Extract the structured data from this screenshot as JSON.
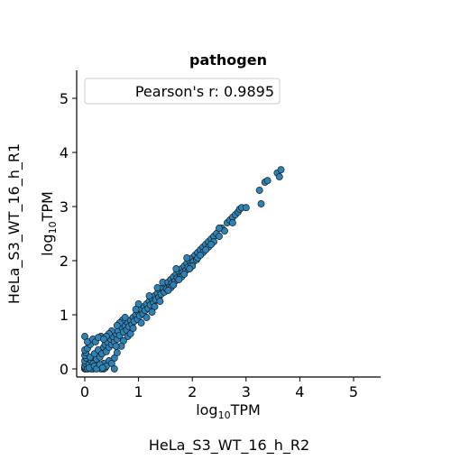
{
  "chart_data": {
    "type": "scatter",
    "title": "pathogen",
    "xlabel": {
      "base": "log",
      "sub": "10",
      "rest": "TPM"
    },
    "ylabel": {
      "base": "log",
      "sub": "10",
      "rest": "TPM"
    },
    "figure_xlabel": "HeLa_S3_WT_16_h_R2",
    "figure_ylabel": "HeLa_S3_WT_16_h_R1",
    "xlim": [
      -0.15,
      5.5
    ],
    "ylim": [
      -0.15,
      5.5
    ],
    "xticks": [
      0,
      1,
      2,
      3,
      4,
      5
    ],
    "yticks": [
      0,
      1,
      2,
      3,
      4,
      5
    ],
    "grid": false,
    "legend": {
      "text": "Pearson's r: 0.9895",
      "placement": "top-left"
    },
    "marker_color": "#2b83ba",
    "marker_edge_color": "#1a1a1a",
    "points": [
      [
        0.0,
        0.0
      ],
      [
        0.0,
        0.02
      ],
      [
        0.02,
        0.0
      ],
      [
        0.0,
        0.05
      ],
      [
        0.05,
        0.0
      ],
      [
        0.01,
        0.1
      ],
      [
        0.1,
        0.01
      ],
      [
        0.0,
        0.15
      ],
      [
        0.15,
        0.0
      ],
      [
        0.03,
        0.2
      ],
      [
        0.2,
        0.03
      ],
      [
        0.0,
        0.25
      ],
      [
        0.25,
        0.02
      ],
      [
        0.02,
        0.3
      ],
      [
        0.3,
        0.05
      ],
      [
        0.0,
        0.35
      ],
      [
        0.35,
        0.0
      ],
      [
        0.05,
        0.38
      ],
      [
        0.38,
        0.02
      ],
      [
        0.0,
        0.6
      ],
      [
        0.08,
        0.08
      ],
      [
        0.12,
        0.15
      ],
      [
        0.16,
        0.1
      ],
      [
        0.1,
        0.22
      ],
      [
        0.22,
        0.18
      ],
      [
        0.18,
        0.28
      ],
      [
        0.28,
        0.22
      ],
      [
        0.25,
        0.35
      ],
      [
        0.32,
        0.28
      ],
      [
        0.35,
        0.4
      ],
      [
        0.4,
        0.32
      ],
      [
        0.38,
        0.45
      ],
      [
        0.45,
        0.4
      ],
      [
        0.42,
        0.5
      ],
      [
        0.5,
        0.45
      ],
      [
        0.48,
        0.55
      ],
      [
        0.55,
        0.5
      ],
      [
        0.52,
        0.6
      ],
      [
        0.6,
        0.55
      ],
      [
        0.58,
        0.65
      ],
      [
        0.1,
        0.45
      ],
      [
        0.05,
        0.5
      ],
      [
        0.15,
        0.55
      ],
      [
        0.2,
        0.5
      ],
      [
        0.3,
        0.6
      ],
      [
        0.25,
        0.58
      ],
      [
        0.55,
        0.2
      ],
      [
        0.6,
        0.3
      ],
      [
        0.45,
        0.15
      ],
      [
        0.35,
        0.1
      ],
      [
        0.3,
        0.0
      ],
      [
        0.4,
        0.05
      ],
      [
        0.5,
        0.1
      ],
      [
        0.55,
        0.0
      ],
      [
        0.12,
        0.0
      ],
      [
        0.08,
        0.02
      ],
      [
        0.18,
        0.05
      ],
      [
        0.22,
        0.0
      ],
      [
        0.28,
        0.08
      ],
      [
        0.33,
        0.02
      ],
      [
        0.62,
        0.7
      ],
      [
        0.65,
        0.62
      ],
      [
        0.7,
        0.75
      ],
      [
        0.72,
        0.68
      ],
      [
        0.75,
        0.8
      ],
      [
        0.78,
        0.72
      ],
      [
        0.8,
        0.85
      ],
      [
        0.82,
        0.78
      ],
      [
        0.85,
        0.9
      ],
      [
        0.88,
        0.82
      ],
      [
        0.9,
        0.95
      ],
      [
        0.92,
        0.88
      ],
      [
        0.95,
        1.0
      ],
      [
        0.98,
        0.92
      ],
      [
        1.0,
        1.05
      ],
      [
        1.02,
        0.98
      ],
      [
        0.7,
        0.9
      ],
      [
        0.75,
        0.95
      ],
      [
        0.8,
        0.6
      ],
      [
        0.85,
        0.65
      ],
      [
        0.65,
        0.85
      ],
      [
        0.9,
        0.75
      ],
      [
        0.6,
        0.8
      ],
      [
        0.72,
        0.52
      ],
      [
        0.68,
        0.42
      ],
      [
        0.5,
        0.7
      ],
      [
        0.45,
        0.65
      ],
      [
        0.4,
        0.6
      ],
      [
        0.35,
        0.55
      ],
      [
        0.58,
        0.42
      ],
      [
        1.05,
        1.1
      ],
      [
        1.08,
        1.02
      ],
      [
        1.1,
        1.15
      ],
      [
        1.12,
        1.08
      ],
      [
        1.15,
        1.2
      ],
      [
        1.18,
        1.12
      ],
      [
        1.2,
        1.25
      ],
      [
        1.22,
        1.18
      ],
      [
        1.25,
        1.3
      ],
      [
        1.28,
        1.22
      ],
      [
        1.3,
        1.35
      ],
      [
        1.32,
        1.28
      ],
      [
        1.35,
        1.4
      ],
      [
        1.38,
        1.32
      ],
      [
        1.4,
        1.45
      ],
      [
        1.42,
        1.38
      ],
      [
        1.45,
        1.5
      ],
      [
        1.48,
        1.42
      ],
      [
        1.5,
        1.55
      ],
      [
        1.52,
        1.48
      ],
      [
        1.0,
        1.2
      ],
      [
        1.05,
        0.85
      ],
      [
        1.15,
        0.95
      ],
      [
        1.2,
        1.35
      ],
      [
        1.3,
        1.15
      ],
      [
        1.35,
        1.5
      ],
      [
        0.95,
        1.1
      ],
      [
        1.25,
        1.05
      ],
      [
        1.4,
        1.25
      ],
      [
        1.45,
        1.6
      ],
      [
        1.55,
        1.6
      ],
      [
        1.58,
        1.52
      ],
      [
        1.6,
        1.65
      ],
      [
        1.62,
        1.58
      ],
      [
        1.65,
        1.7
      ],
      [
        1.68,
        1.62
      ],
      [
        1.7,
        1.75
      ],
      [
        1.72,
        1.68
      ],
      [
        1.75,
        1.8
      ],
      [
        1.78,
        1.72
      ],
      [
        1.8,
        1.85
      ],
      [
        1.82,
        1.78
      ],
      [
        1.85,
        1.9
      ],
      [
        1.88,
        1.82
      ],
      [
        1.9,
        1.95
      ],
      [
        1.92,
        1.88
      ],
      [
        1.95,
        2.0
      ],
      [
        1.98,
        1.92
      ],
      [
        2.0,
        2.05
      ],
      [
        2.02,
        1.98
      ],
      [
        1.6,
        1.5
      ],
      [
        1.7,
        1.85
      ],
      [
        1.8,
        1.7
      ],
      [
        1.9,
        2.05
      ],
      [
        2.0,
        1.9
      ],
      [
        1.55,
        1.45
      ],
      [
        1.65,
        1.55
      ],
      [
        1.75,
        1.65
      ],
      [
        1.85,
        1.75
      ],
      [
        1.95,
        1.85
      ],
      [
        2.05,
        2.1
      ],
      [
        2.08,
        2.02
      ],
      [
        2.1,
        2.15
      ],
      [
        2.15,
        2.2
      ],
      [
        2.2,
        2.25
      ],
      [
        2.25,
        2.3
      ],
      [
        2.3,
        2.35
      ],
      [
        2.35,
        2.4
      ],
      [
        2.4,
        2.45
      ],
      [
        2.45,
        2.5
      ],
      [
        2.1,
        2.05
      ],
      [
        2.2,
        2.15
      ],
      [
        2.3,
        2.25
      ],
      [
        2.4,
        2.35
      ],
      [
        2.15,
        2.1
      ],
      [
        2.25,
        2.2
      ],
      [
        2.35,
        2.3
      ],
      [
        2.5,
        2.45
      ],
      [
        2.55,
        2.6
      ],
      [
        2.6,
        2.55
      ],
      [
        2.65,
        2.7
      ],
      [
        2.7,
        2.75
      ],
      [
        2.75,
        2.8
      ],
      [
        2.8,
        2.85
      ],
      [
        2.85,
        2.9
      ],
      [
        2.88,
        2.95
      ],
      [
        2.92,
        2.98
      ],
      [
        3.0,
        2.98
      ],
      [
        2.5,
        2.6
      ],
      [
        2.75,
        2.7
      ],
      [
        3.25,
        3.3
      ],
      [
        3.35,
        3.45
      ],
      [
        3.4,
        3.48
      ],
      [
        3.58,
        3.62
      ],
      [
        3.65,
        3.68
      ],
      [
        3.62,
        3.55
      ],
      [
        3.28,
        3.05
      ]
    ]
  }
}
